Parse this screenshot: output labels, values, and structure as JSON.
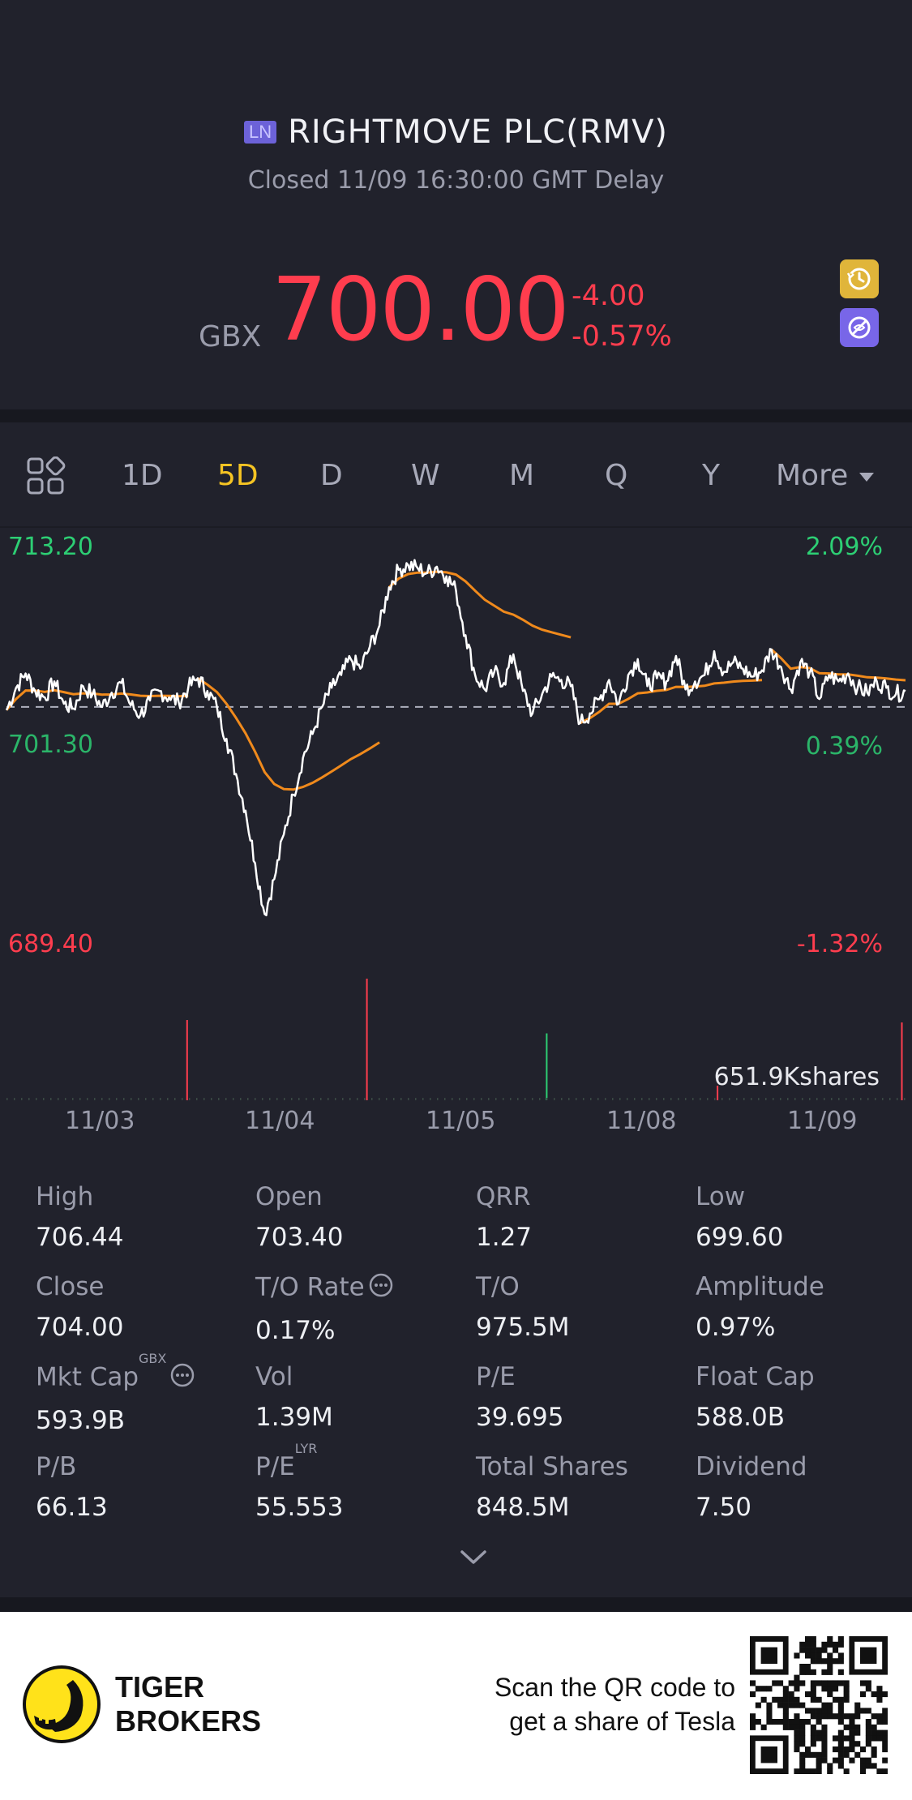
{
  "header": {
    "exchange_badge": "LN",
    "title": "RIGHTMOVE PLC(RMV)",
    "status": "Closed 11/09 16:30:00 GMT Delay",
    "currency": "GBX",
    "price": "700.00",
    "change_abs": "-4.00",
    "change_pct": "-0.57%"
  },
  "tabs": [
    {
      "label": "1D",
      "active": false
    },
    {
      "label": "5D",
      "active": true
    },
    {
      "label": "D",
      "active": false
    },
    {
      "label": "W",
      "active": false
    },
    {
      "label": "M",
      "active": false
    },
    {
      "label": "Q",
      "active": false
    },
    {
      "label": "Y",
      "active": false
    },
    {
      "label": "More",
      "active": false
    }
  ],
  "chart": {
    "max_price": "713.20",
    "max_pct": "2.09%",
    "mid_price": "701.30",
    "mid_pct": "0.39%",
    "min_price": "689.40",
    "min_pct": "-1.32%",
    "volume_label": "651.9Kshares",
    "dates": [
      "11/03",
      "11/04",
      "11/05",
      "11/08",
      "11/09"
    ]
  },
  "chart_data": {
    "type": "line",
    "ylim": [
      689.4,
      713.2
    ],
    "reference_close": 704.0,
    "series": [
      {
        "values": [
          703.8,
          705.2,
          706.1,
          705.0,
          704.6,
          705.6,
          704.2,
          703.9,
          705.3,
          704.8,
          704.0,
          704.9,
          705.5,
          704.1,
          703.5,
          704.4,
          705.0,
          704.6,
          704.3,
          705.2,
          705.8,
          705.0,
          704.0,
          702.0,
          699.8,
          697.5,
          694.2,
          691.0,
          693.2,
          696.0,
          698.5,
          700.8,
          702.3,
          704.0,
          705.2,
          706.0,
          707.0,
          706.4,
          707.8,
          709.1,
          711.5,
          712.6,
          712.9,
          712.7,
          712.4,
          712.8,
          712.2,
          711.3,
          708.5,
          706.0,
          705.1,
          706.2,
          705.5,
          707.3,
          705.0,
          703.6,
          704.8,
          705.9,
          705.7,
          705.3,
          703.0,
          703.6,
          704.5,
          705.7,
          704.2,
          706.0,
          707.0,
          705.3,
          705.8,
          705.6,
          707.2,
          705.1,
          705.6,
          706.0,
          707.5,
          706.2,
          706.8,
          706.4,
          705.9,
          706.3,
          707.6,
          706.5,
          705.1,
          706.8,
          706.2,
          704.5,
          706.0,
          705.6,
          706.1,
          705.2,
          704.9,
          705.6,
          705.2,
          704.8,
          705.0
        ]
      }
    ],
    "volume_bars": [
      {
        "pos": 0.2,
        "volume": 0.66,
        "color": "red"
      },
      {
        "pos": 0.4,
        "volume": 1.0,
        "color": "red"
      },
      {
        "pos": 0.6,
        "volume": 0.55,
        "color": "green"
      },
      {
        "pos": 0.79,
        "volume": 0.12,
        "color": "red"
      },
      {
        "pos": 0.995,
        "volume": 0.64,
        "color": "red"
      }
    ]
  },
  "stats": [
    {
      "label": "High",
      "value": "706.44"
    },
    {
      "label": "Open",
      "value": "703.40"
    },
    {
      "label": "QRR",
      "value": "1.27"
    },
    {
      "label": "Low",
      "value": "699.60"
    },
    {
      "label": "Close",
      "value": "704.00"
    },
    {
      "label": "T/O Rate",
      "value": "0.17%"
    },
    {
      "label": "T/O",
      "value": "975.5M"
    },
    {
      "label": "Amplitude",
      "value": "0.97%"
    },
    {
      "label": "Mkt Cap",
      "value": "593.9B",
      "sup": "GBX"
    },
    {
      "label": "Vol",
      "value": "1.39M"
    },
    {
      "label": "P/E",
      "value": "39.695"
    },
    {
      "label": "Float Cap",
      "value": "588.0B"
    },
    {
      "label": "P/B",
      "value": "66.13"
    },
    {
      "label": "P/E",
      "value": "55.553",
      "sup": "LYR"
    },
    {
      "label": "Total Shares",
      "value": "848.5M"
    },
    {
      "label": "Dividend",
      "value": "7.50"
    }
  ],
  "footer": {
    "brand_line1": "TIGER",
    "brand_line2": "BROKERS",
    "scan_line1": "Scan the QR code to",
    "scan_line2": "get a share of Tesla"
  },
  "colors": {
    "up": "#2dcf74",
    "down": "#ff3d4e",
    "active_tab": "#f5c423",
    "ma_line": "#f08a1c",
    "price_line": "#ffffff"
  }
}
